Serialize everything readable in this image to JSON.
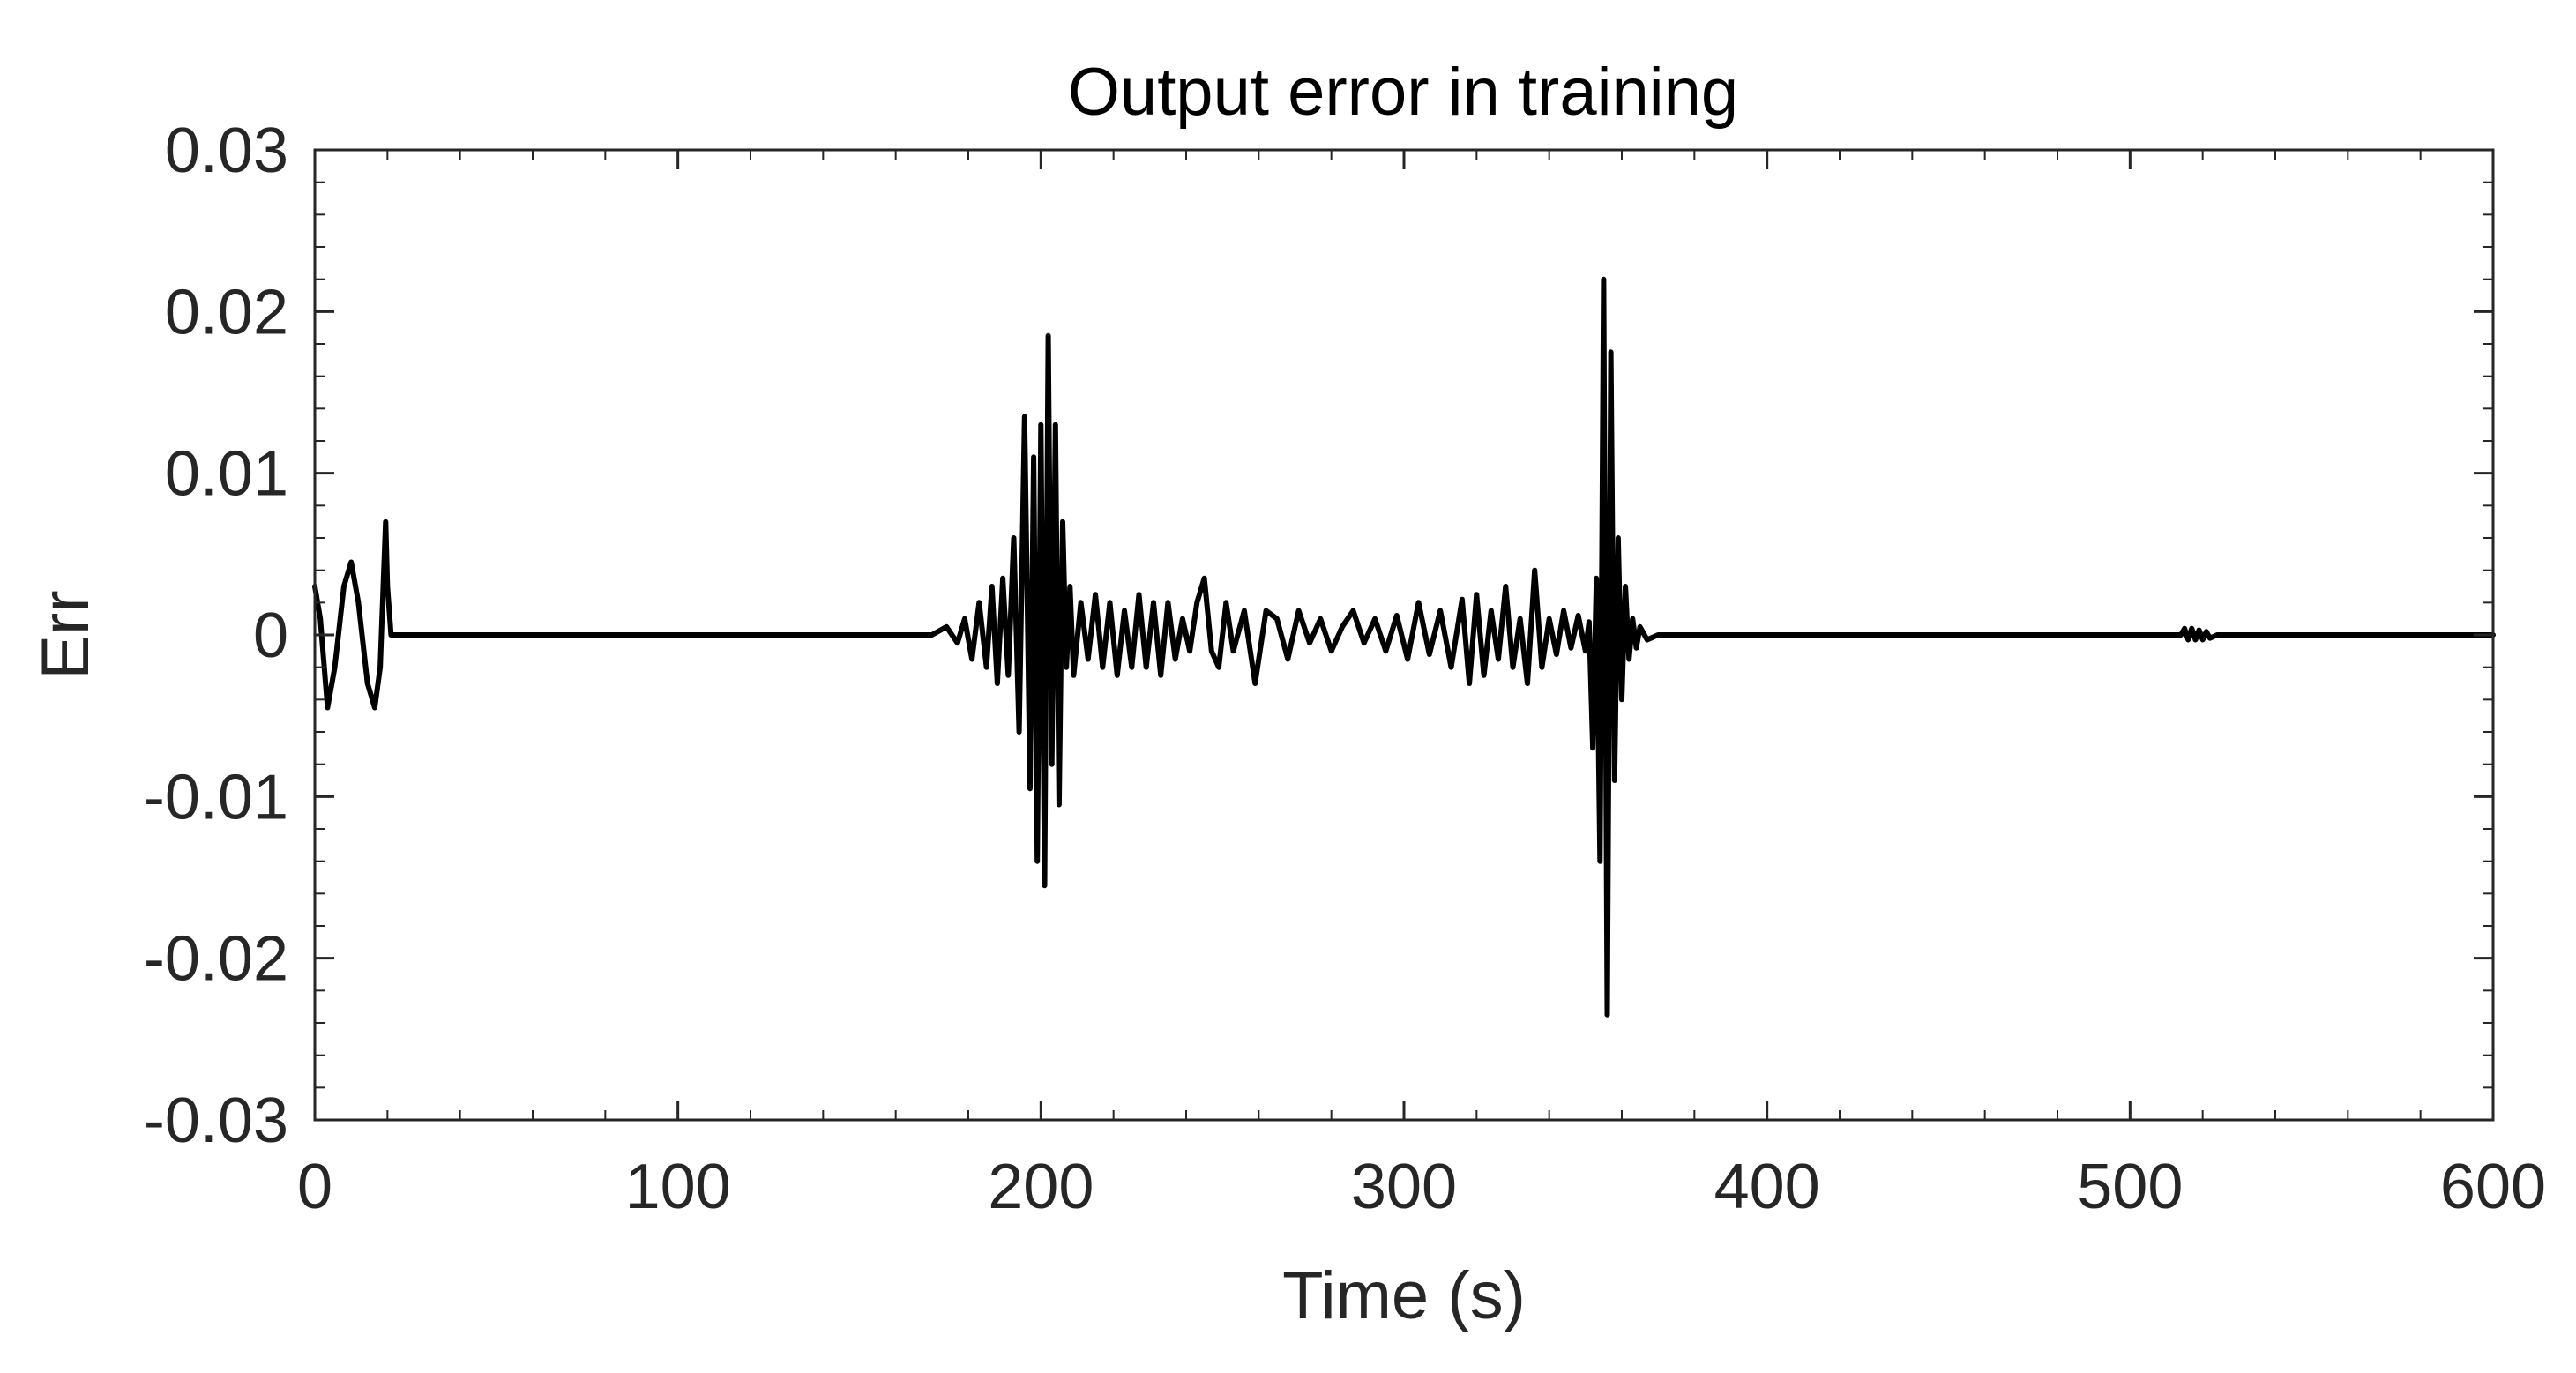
{
  "chart_data": {
    "type": "line",
    "title": "Output error in training",
    "xlabel": "Time (s)",
    "ylabel": "Err",
    "xlim": [
      0,
      600
    ],
    "ylim": [
      -0.03,
      0.03
    ],
    "xticks": [
      0,
      100,
      200,
      300,
      400,
      500,
      600
    ],
    "xtick_labels": [
      "0",
      "100",
      "200",
      "300",
      "400",
      "500",
      "600"
    ],
    "yticks": [
      -0.03,
      -0.02,
      -0.01,
      0,
      0.01,
      0.02,
      0.03
    ],
    "ytick_labels": [
      "-0.03",
      "-0.02",
      "-0.01",
      "0",
      "0.01",
      "0.02",
      "0.03"
    ],
    "grid": false,
    "line_color": "#000000",
    "series": [
      {
        "x": [
          0,
          1.5,
          3.5,
          5.5,
          8,
          10,
          12,
          14.5,
          16.5,
          18,
          19,
          19.5,
          20,
          21,
          22,
          60,
          120,
          170,
          174,
          177,
          179,
          181,
          183,
          185,
          186.5,
          188,
          189.5,
          191,
          192.5,
          194,
          195.5,
          197,
          198,
          199,
          200,
          201,
          202,
          203,
          204,
          205,
          206,
          207,
          208,
          209,
          211,
          213,
          215,
          217,
          219,
          221,
          223,
          225,
          227,
          229,
          231,
          233,
          235,
          237,
          239,
          241,
          243,
          245,
          247,
          249,
          251,
          253,
          256,
          259,
          262,
          265,
          268,
          271,
          274,
          277,
          280,
          283,
          286,
          289,
          292,
          295,
          298,
          301,
          304,
          307,
          310,
          313,
          316,
          318,
          320,
          322,
          324,
          326,
          328,
          330,
          332,
          334,
          336,
          338,
          340,
          342,
          344,
          346,
          348,
          350,
          351,
          352,
          353,
          354,
          355,
          356,
          357,
          358,
          359,
          360,
          361,
          362,
          363,
          364,
          365,
          367,
          370,
          380,
          450,
          510,
          514,
          515,
          516,
          517,
          518,
          519,
          520,
          521,
          522,
          524,
          560,
          600
        ],
        "y": [
          0.003,
          0.001,
          -0.0045,
          -0.002,
          0.003,
          0.0045,
          0.002,
          -0.003,
          -0.0045,
          -0.002,
          0.004,
          0.007,
          0.003,
          0,
          0,
          0,
          0,
          0,
          0.0005,
          -0.0005,
          0.001,
          -0.0015,
          0.002,
          -0.002,
          0.003,
          -0.003,
          0.0035,
          -0.0025,
          0.006,
          -0.006,
          0.0135,
          -0.0095,
          0.011,
          -0.014,
          0.013,
          -0.0155,
          0.0185,
          -0.008,
          0.013,
          -0.0105,
          0.007,
          -0.002,
          0.003,
          -0.0025,
          0.002,
          -0.0015,
          0.0025,
          -0.002,
          0.002,
          -0.0025,
          0.0015,
          -0.002,
          0.0025,
          -0.002,
          0.002,
          -0.0025,
          0.002,
          -0.0015,
          0.001,
          -0.001,
          0.002,
          0.0035,
          -0.001,
          -0.002,
          0.002,
          -0.001,
          0.0015,
          -0.003,
          0.0015,
          0.001,
          -0.0015,
          0.0015,
          -0.0005,
          0.001,
          -0.001,
          0.0005,
          0.0015,
          -0.0005,
          0.001,
          -0.001,
          0.0012,
          -0.0015,
          0.002,
          -0.0012,
          0.0015,
          -0.002,
          0.0022,
          -0.003,
          0.0025,
          -0.0025,
          0.0015,
          -0.0015,
          0.003,
          -0.002,
          0.001,
          -0.003,
          0.004,
          -0.002,
          0.001,
          -0.0012,
          0.0015,
          -0.0008,
          0.0012,
          -0.001,
          0.0008,
          -0.007,
          0.0035,
          -0.014,
          0.022,
          -0.0235,
          0.0175,
          -0.009,
          0.006,
          -0.004,
          0.003,
          -0.0015,
          0.001,
          -0.0008,
          0.0005,
          -0.0003,
          0,
          0,
          0,
          0,
          0,
          0.0004,
          -0.0003,
          0.0004,
          -0.0003,
          0.0003,
          -0.0003,
          0.0002,
          -0.0002,
          0,
          0,
          0
        ]
      }
    ]
  }
}
